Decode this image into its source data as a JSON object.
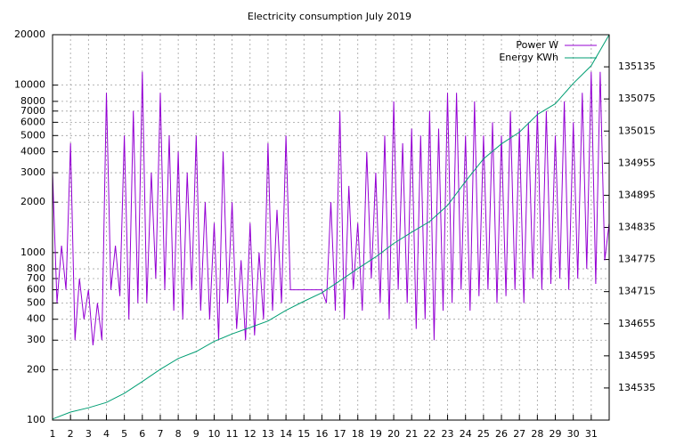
{
  "chart_data": {
    "type": "line",
    "title": "Electricity consumption July 2019",
    "log_scale_y": true,
    "grid": true,
    "legend": "top-right",
    "xlim": [
      1,
      32
    ],
    "xticks": [
      1,
      2,
      3,
      4,
      5,
      6,
      7,
      8,
      9,
      10,
      11,
      12,
      13,
      14,
      15,
      16,
      17,
      18,
      19,
      20,
      21,
      22,
      23,
      24,
      25,
      26,
      27,
      28,
      29,
      30,
      31
    ],
    "ylim": [
      100,
      20000
    ],
    "yticks": [
      100,
      200,
      300,
      400,
      500,
      600,
      700,
      800,
      1000,
      2000,
      3000,
      4000,
      5000,
      6000,
      7000,
      8000,
      10000,
      20000
    ],
    "y2lim": [
      134475,
      135195
    ],
    "y2ticks": [
      134535,
      134595,
      134655,
      134715,
      134775,
      134835,
      134895,
      134955,
      135015,
      135075,
      135135
    ],
    "series": [
      {
        "name": "Power W",
        "color": "#9400d3",
        "x": [
          1,
          1.25,
          1.5,
          1.75,
          2,
          2.25,
          2.5,
          2.75,
          3,
          3.25,
          3.5,
          3.75,
          4,
          4.25,
          4.5,
          4.75,
          5,
          5.25,
          5.5,
          5.75,
          6,
          6.25,
          6.5,
          6.75,
          7,
          7.25,
          7.5,
          7.75,
          8,
          8.25,
          8.5,
          8.75,
          9,
          9.25,
          9.5,
          9.75,
          10,
          10.25,
          10.5,
          10.75,
          11,
          11.25,
          11.5,
          11.75,
          12,
          12.25,
          12.5,
          12.75,
          13,
          13.25,
          13.5,
          13.75,
          14,
          14.25,
          14.5,
          14.75,
          15,
          15.25,
          15.5,
          15.75,
          16,
          16.25,
          16.5,
          16.75,
          17,
          17.25,
          17.5,
          17.75,
          18,
          18.25,
          18.5,
          18.75,
          19,
          19.25,
          19.5,
          19.75,
          20,
          20.25,
          20.5,
          20.75,
          21,
          21.25,
          21.5,
          21.75,
          22,
          22.25,
          22.5,
          22.75,
          23,
          23.25,
          23.5,
          23.75,
          24,
          24.25,
          24.5,
          24.75,
          25,
          25.25,
          25.5,
          25.75,
          26,
          26.25,
          26.5,
          26.75,
          27,
          27.25,
          27.5,
          27.75,
          28,
          28.25,
          28.5,
          28.75,
          29,
          29.25,
          29.5,
          29.75,
          30,
          30.25,
          30.5,
          30.75,
          31,
          31.25,
          31.5,
          31.75,
          32
        ],
        "values": [
          3000,
          500,
          1100,
          600,
          4500,
          300,
          700,
          400,
          600,
          280,
          500,
          300,
          9000,
          600,
          1100,
          550,
          5000,
          400,
          7000,
          500,
          12000,
          500,
          3000,
          700,
          9000,
          600,
          5000,
          450,
          4000,
          400,
          3000,
          600,
          5000,
          450,
          2000,
          400,
          1500,
          300,
          4000,
          500,
          2000,
          350,
          900,
          300,
          1500,
          320,
          1000,
          400,
          4500,
          450,
          1800,
          500,
          5000,
          600,
          600,
          600,
          600,
          600,
          600,
          600,
          600,
          500,
          2000,
          450,
          7000,
          400,
          2500,
          600,
          1500,
          450,
          4000,
          700,
          3000,
          500,
          5000,
          400,
          8000,
          600,
          4500,
          500,
          5500,
          350,
          5000,
          400,
          7000,
          300,
          5500,
          450,
          9000,
          500,
          9000,
          600,
          5000,
          450,
          8000,
          550,
          5000,
          600,
          6000,
          500,
          5000,
          550,
          7000,
          600,
          5500,
          500,
          6000,
          700,
          7000,
          600,
          7000,
          650,
          5000,
          700,
          8000,
          600,
          6000,
          700,
          9000,
          800,
          12000,
          650,
          12000,
          900,
          1500
        ]
      },
      {
        "name": "Energy KWh",
        "color": "#009e73",
        "axis": "y2",
        "x": [
          1,
          2,
          3,
          4,
          5,
          6,
          7,
          8,
          9,
          10,
          11,
          12,
          13,
          14,
          15,
          16,
          17,
          18,
          19,
          20,
          21,
          22,
          23,
          24,
          25,
          26,
          27,
          28,
          29,
          30,
          31,
          32
        ],
        "values": [
          134477,
          134490,
          134498,
          134508,
          134525,
          134547,
          134570,
          134590,
          134603,
          134622,
          134636,
          134648,
          134660,
          134680,
          134697,
          134713,
          134735,
          134758,
          134780,
          134805,
          134826,
          134846,
          134876,
          134921,
          134963,
          134991,
          135013,
          135046,
          135066,
          135104,
          135137,
          135195
        ]
      }
    ]
  }
}
